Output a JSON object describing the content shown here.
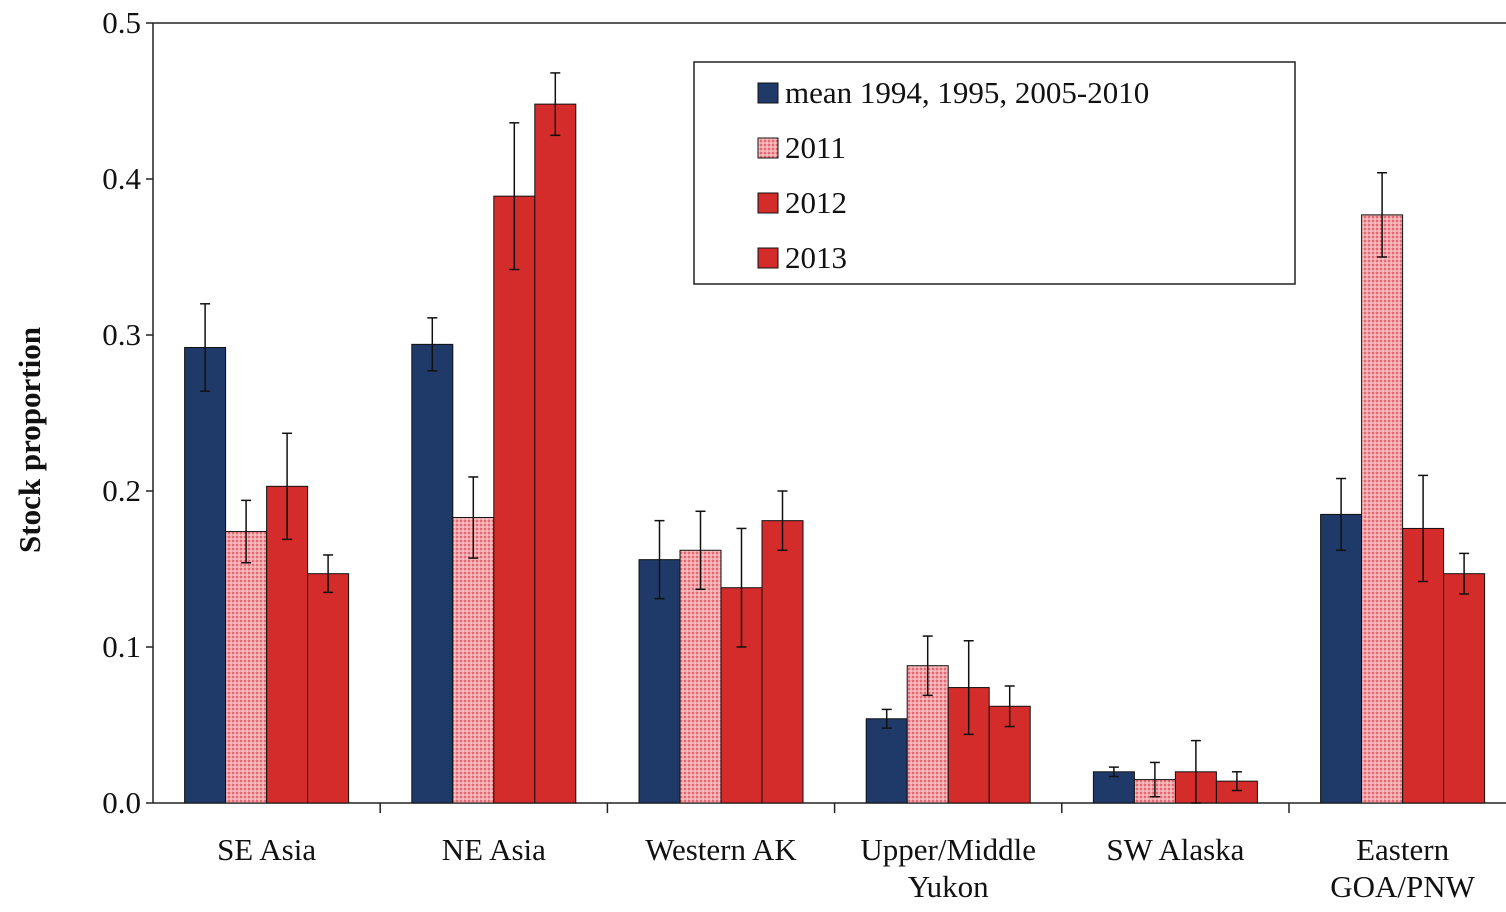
{
  "chart_data": {
    "type": "bar",
    "y_label": "Stock proportion",
    "categories": [
      "SE Asia",
      "NE Asia",
      "Western AK",
      "Upper/Middle\nYukon",
      "SW Alaska",
      "Eastern\nGOA/PNW"
    ],
    "series": [
      {
        "name": "mean 1994, 1995, 2005-2010",
        "color": "#1f3a68",
        "values": [
          0.292,
          0.294,
          0.156,
          0.054,
          0.02,
          0.185
        ],
        "errors": [
          0.028,
          0.017,
          0.025,
          0.006,
          0.003,
          0.023
        ]
      },
      {
        "name": "2011",
        "color": "#f08c90",
        "pattern": "dots",
        "values": [
          0.174,
          0.183,
          0.162,
          0.088,
          0.015,
          0.377
        ],
        "errors": [
          0.02,
          0.026,
          0.025,
          0.019,
          0.011,
          0.027
        ]
      },
      {
        "name": "2012",
        "color": "#d42b2b",
        "values": [
          0.203,
          0.389,
          0.138,
          0.074,
          0.02,
          0.176
        ],
        "errors": [
          0.034,
          0.047,
          0.038,
          0.03,
          0.02,
          0.034
        ]
      },
      {
        "name": "2013",
        "color": "#d42b2b",
        "values": [
          0.147,
          0.448,
          0.181,
          0.062,
          0.014,
          0.147
        ],
        "errors": [
          0.012,
          0.02,
          0.019,
          0.013,
          0.006,
          0.013
        ]
      }
    ],
    "ylim": [
      0,
      0.5
    ],
    "yticks": [
      {
        "value": 0,
        "label": "0.0"
      },
      0.1,
      0.2,
      0.3,
      0.4,
      0.5
    ],
    "legend": "top center",
    "grid": false
  }
}
